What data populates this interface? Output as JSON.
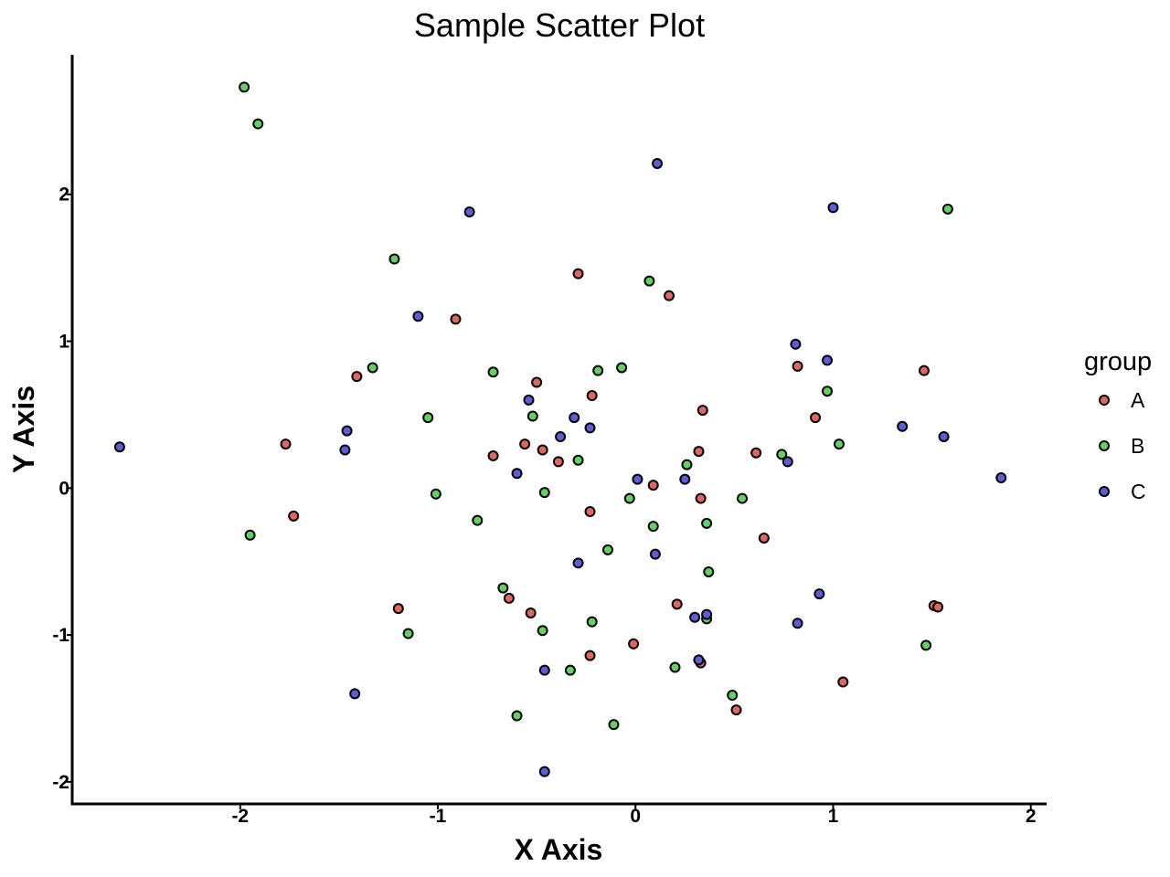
{
  "chart_data": {
    "type": "scatter",
    "title": "Sample Scatter Plot",
    "xlabel": "X Axis",
    "ylabel": "Y Axis",
    "xlim": [
      -2.85,
      2.08
    ],
    "ylim": [
      -2.15,
      2.95
    ],
    "xticks": [
      -2,
      -1,
      0,
      1,
      2
    ],
    "yticks": [
      -2,
      -1,
      0,
      1,
      2
    ],
    "grid": false,
    "legend": {
      "title": "group",
      "placement": "right"
    },
    "series": [
      {
        "name": "A",
        "color": "#e4655b",
        "points": [
          [
            -0.29,
            1.46
          ],
          [
            0.17,
            1.31
          ],
          [
            -0.91,
            1.15
          ],
          [
            -1.41,
            0.76
          ],
          [
            -0.5,
            0.72
          ],
          [
            -0.22,
            0.63
          ],
          [
            0.82,
            0.83
          ],
          [
            1.46,
            0.8
          ],
          [
            0.34,
            0.53
          ],
          [
            0.91,
            0.48
          ],
          [
            -1.77,
            0.3
          ],
          [
            -0.56,
            0.3
          ],
          [
            -0.47,
            0.26
          ],
          [
            -0.72,
            0.22
          ],
          [
            -0.39,
            0.18
          ],
          [
            0.32,
            0.25
          ],
          [
            0.61,
            0.24
          ],
          [
            0.09,
            0.02
          ],
          [
            0.33,
            -0.07
          ],
          [
            -0.23,
            -0.16
          ],
          [
            -1.73,
            -0.19
          ],
          [
            0.65,
            -0.34
          ],
          [
            -0.64,
            -0.75
          ],
          [
            -0.53,
            -0.85
          ],
          [
            0.21,
            -0.79
          ],
          [
            -1.2,
            -0.82
          ],
          [
            1.51,
            -0.8
          ],
          [
            1.53,
            -0.81
          ],
          [
            -0.01,
            -1.06
          ],
          [
            -0.23,
            -1.14
          ],
          [
            0.33,
            -1.19
          ],
          [
            1.05,
            -1.32
          ],
          [
            0.51,
            -1.51
          ]
        ]
      },
      {
        "name": "B",
        "color": "#5ed45e",
        "points": [
          [
            -1.98,
            2.73
          ],
          [
            -1.91,
            2.48
          ],
          [
            1.58,
            1.9
          ],
          [
            -1.22,
            1.56
          ],
          [
            0.07,
            1.41
          ],
          [
            -1.33,
            0.82
          ],
          [
            -0.72,
            0.79
          ],
          [
            -0.19,
            0.8
          ],
          [
            -0.07,
            0.82
          ],
          [
            0.97,
            0.66
          ],
          [
            -0.52,
            0.49
          ],
          [
            -1.05,
            0.48
          ],
          [
            1.03,
            0.3
          ],
          [
            0.74,
            0.23
          ],
          [
            -0.29,
            0.19
          ],
          [
            0.26,
            0.16
          ],
          [
            -0.46,
            -0.03
          ],
          [
            -1.01,
            -0.04
          ],
          [
            -0.03,
            -0.07
          ],
          [
            0.54,
            -0.07
          ],
          [
            -0.8,
            -0.22
          ],
          [
            0.09,
            -0.26
          ],
          [
            0.36,
            -0.24
          ],
          [
            -1.95,
            -0.32
          ],
          [
            -0.14,
            -0.42
          ],
          [
            0.37,
            -0.57
          ],
          [
            -0.67,
            -0.68
          ],
          [
            -0.22,
            -0.91
          ],
          [
            0.36,
            -0.89
          ],
          [
            -0.47,
            -0.97
          ],
          [
            -1.15,
            -0.99
          ],
          [
            1.47,
            -1.07
          ],
          [
            0.2,
            -1.22
          ],
          [
            -0.33,
            -1.24
          ],
          [
            0.49,
            -1.41
          ],
          [
            -0.6,
            -1.55
          ],
          [
            -0.11,
            -1.61
          ]
        ]
      },
      {
        "name": "C",
        "color": "#5c5cdc",
        "points": [
          [
            0.11,
            2.21
          ],
          [
            1.0,
            1.91
          ],
          [
            -0.84,
            1.88
          ],
          [
            -1.1,
            1.17
          ],
          [
            0.81,
            0.98
          ],
          [
            0.97,
            0.87
          ],
          [
            -0.54,
            0.6
          ],
          [
            -0.31,
            0.48
          ],
          [
            -0.23,
            0.41
          ],
          [
            1.35,
            0.42
          ],
          [
            -1.46,
            0.39
          ],
          [
            -0.38,
            0.35
          ],
          [
            1.56,
            0.35
          ],
          [
            -2.61,
            0.28
          ],
          [
            -1.47,
            0.26
          ],
          [
            0.77,
            0.18
          ],
          [
            -0.6,
            0.1
          ],
          [
            0.01,
            0.06
          ],
          [
            0.25,
            0.06
          ],
          [
            1.85,
            0.07
          ],
          [
            0.1,
            -0.45
          ],
          [
            -0.29,
            -0.51
          ],
          [
            0.93,
            -0.72
          ],
          [
            0.36,
            -0.86
          ],
          [
            0.3,
            -0.88
          ],
          [
            0.82,
            -0.92
          ],
          [
            0.32,
            -1.17
          ],
          [
            -0.46,
            -1.24
          ],
          [
            -1.42,
            -1.4
          ],
          [
            -0.46,
            -1.93
          ]
        ]
      }
    ]
  }
}
